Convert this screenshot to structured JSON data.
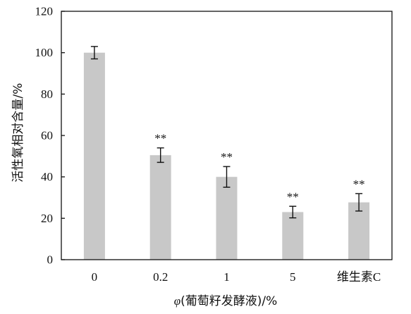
{
  "chart_data": {
    "type": "bar",
    "xlabel_symbol": "φ",
    "xlabel_rest": "(葡萄籽发酵液)/%",
    "ylabel": "活性氧相对含量/%",
    "ylim": [
      0,
      120
    ],
    "yticks": [
      "0",
      "20",
      "40",
      "60",
      "80",
      "100",
      "120"
    ],
    "categories": [
      "0",
      "0.2",
      "1",
      "5",
      "维生素C"
    ],
    "values": [
      100,
      50.5,
      40,
      23,
      27.7
    ],
    "errors": [
      3,
      3.5,
      5,
      2.8,
      4.2
    ],
    "significance": [
      "",
      "**",
      "**",
      "**",
      "**"
    ],
    "colors": {
      "bar": "#c8c8c8",
      "axis": "#111111"
    },
    "grid": false,
    "legend": "none"
  }
}
